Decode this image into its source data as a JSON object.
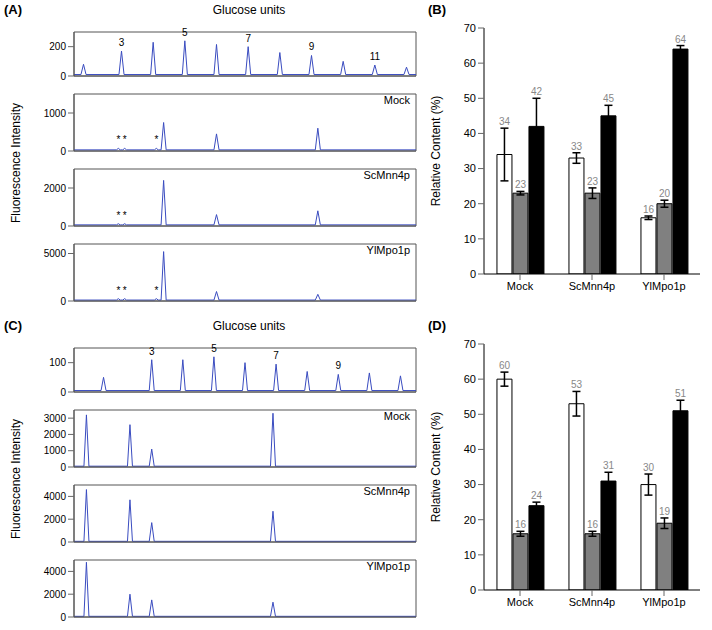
{
  "chart_data": [
    {
      "type": "line",
      "panel": "(A)",
      "title": "Glucose units",
      "y_label": "Fluorescence Intensity",
      "tick_labels": "y",
      "xlim": [
        1.5,
        12.3
      ],
      "traces": [
        {
          "color": "#3a4cc0",
          "ylim": [
            0,
            300
          ],
          "yticks": [
            0,
            200
          ],
          "x": [
            1.5,
            1.72,
            1.8,
            1.88,
            2.92,
            3,
            3.08,
            3.92,
            4,
            4.08,
            4.92,
            5,
            5.08,
            5.92,
            6,
            6.08,
            6.92,
            7,
            7.08,
            7.92,
            8,
            8.08,
            8.92,
            9,
            9.08,
            9.92,
            10,
            10.08,
            10.92,
            11,
            11.08,
            11.92,
            12,
            12.08,
            12.3
          ],
          "values": [
            10,
            10,
            80,
            10,
            10,
            170,
            10,
            10,
            230,
            10,
            10,
            240,
            10,
            10,
            215,
            10,
            10,
            200,
            10,
            10,
            160,
            10,
            10,
            140,
            10,
            10,
            100,
            10,
            10,
            75,
            10,
            10,
            60,
            10,
            10
          ],
          "annotations": [
            {
              "x": 3,
              "y": 170,
              "label": "3"
            },
            {
              "x": 5,
              "y": 240,
              "label": "5"
            },
            {
              "x": 7,
              "y": 200,
              "label": "7"
            },
            {
              "x": 9,
              "y": 140,
              "label": "9"
            },
            {
              "x": 11,
              "y": 75,
              "label": "11"
            }
          ]
        },
        {
          "name": "Mock",
          "color": "#3a4cc0",
          "ylim": [
            0,
            1500
          ],
          "yticks": [
            0,
            1000
          ],
          "x": [
            1.5,
            2.84,
            2.9,
            2.96,
            3.04,
            3.1,
            3.16,
            4.04,
            4.1,
            4.16,
            4.25,
            4.33,
            4.41,
            5.92,
            6,
            6.08,
            9.12,
            9.2,
            9.28,
            12.3
          ],
          "values": [
            30,
            30,
            70,
            30,
            30,
            70,
            30,
            30,
            70,
            30,
            30,
            750,
            30,
            30,
            450,
            30,
            30,
            600,
            30,
            30
          ],
          "annotations": [
            {
              "x": 2.9,
              "y": 70,
              "label": "*"
            },
            {
              "x": 3.1,
              "y": 70,
              "label": "*"
            },
            {
              "x": 4.1,
              "y": 70,
              "label": "*"
            }
          ]
        },
        {
          "name": "ScMnn4p",
          "color": "#3a4cc0",
          "ylim": [
            0,
            3000
          ],
          "yticks": [
            0,
            2000
          ],
          "x": [
            1.5,
            2.84,
            2.9,
            2.96,
            3.04,
            3.1,
            3.16,
            4.25,
            4.33,
            4.41,
            5.92,
            6,
            6.08,
            9.12,
            9.2,
            9.28,
            12.3
          ],
          "values": [
            60,
            60,
            120,
            60,
            60,
            120,
            60,
            60,
            2400,
            60,
            60,
            600,
            60,
            60,
            800,
            60,
            60
          ],
          "annotations": [
            {
              "x": 2.9,
              "y": 120,
              "label": "*"
            },
            {
              "x": 3.1,
              "y": 120,
              "label": "*"
            }
          ]
        },
        {
          "name": "YlMpo1p",
          "color": "#3a4cc0",
          "ylim": [
            0,
            6000
          ],
          "yticks": [
            0,
            5000
          ],
          "x": [
            1.5,
            2.84,
            2.9,
            2.96,
            3.04,
            3.1,
            3.16,
            4.04,
            4.1,
            4.16,
            4.25,
            4.33,
            4.41,
            5.92,
            6,
            6.08,
            9.12,
            9.2,
            9.28,
            12.3
          ],
          "values": [
            100,
            100,
            250,
            100,
            100,
            250,
            100,
            100,
            250,
            100,
            100,
            5200,
            100,
            100,
            1000,
            100,
            100,
            700,
            100,
            100
          ],
          "annotations": [
            {
              "x": 2.9,
              "y": 250,
              "label": "*"
            },
            {
              "x": 3.1,
              "y": 250,
              "label": "*"
            },
            {
              "x": 4.1,
              "y": 250,
              "label": "*"
            }
          ]
        }
      ]
    },
    {
      "type": "bar",
      "panel": "(B)",
      "y_label": "Relative Content (%)",
      "categories": [
        "Mock",
        "ScMnn4p",
        "YlMpo1p"
      ],
      "ylim": [
        0,
        70
      ],
      "yticks": [
        0,
        10,
        20,
        30,
        40,
        50,
        60,
        70
      ],
      "data_labels": true,
      "series": [
        {
          "color": "#ffffff",
          "values": [
            34,
            33,
            16
          ],
          "errors": [
            7.5,
            1.5,
            0.5
          ]
        },
        {
          "color": "#808080",
          "values": [
            23,
            23,
            20
          ],
          "errors": [
            0.5,
            1.5,
            1
          ]
        },
        {
          "color": "#000000",
          "values": [
            42,
            45,
            64
          ],
          "errors": [
            8,
            3,
            1
          ]
        }
      ]
    },
    {
      "type": "line",
      "panel": "(C)",
      "title": "Glucose units",
      "y_label": "Fluorescence Intensity",
      "tick_labels": "y",
      "xlim": [
        0.5,
        11.5
      ],
      "traces": [
        {
          "color": "#3a4cc0",
          "ylim": [
            0,
            150
          ],
          "yticks": [
            0,
            100
          ],
          "x": [
            0.5,
            1.37,
            1.45,
            1.53,
            2.92,
            3,
            3.08,
            3.92,
            4,
            4.08,
            4.92,
            5,
            5.08,
            5.92,
            6,
            6.08,
            6.92,
            7,
            7.08,
            7.92,
            8,
            8.08,
            8.92,
            9,
            9.08,
            9.92,
            10,
            10.08,
            10.92,
            11,
            11.08,
            11.5
          ],
          "values": [
            5,
            5,
            50,
            5,
            5,
            110,
            5,
            5,
            110,
            5,
            5,
            120,
            5,
            5,
            100,
            5,
            5,
            95,
            5,
            5,
            70,
            5,
            5,
            60,
            5,
            5,
            65,
            5,
            5,
            55,
            5,
            5
          ],
          "annotations": [
            {
              "x": 3,
              "y": 110,
              "label": "3"
            },
            {
              "x": 5,
              "y": 120,
              "label": "5"
            },
            {
              "x": 7,
              "y": 95,
              "label": "7"
            },
            {
              "x": 9,
              "y": 60,
              "label": "9"
            }
          ]
        },
        {
          "name": "Mock",
          "color": "#3a4cc0",
          "ylim": [
            0,
            3500
          ],
          "yticks": [
            0,
            1000,
            2000,
            3000
          ],
          "x": [
            0.5,
            0.82,
            0.9,
            0.98,
            2.22,
            2.3,
            2.38,
            2.92,
            3,
            3.08,
            6.82,
            6.9,
            6.98,
            11.5
          ],
          "values": [
            50,
            50,
            3200,
            50,
            50,
            2600,
            50,
            50,
            1100,
            50,
            50,
            3300,
            50,
            50
          ]
        },
        {
          "name": "ScMnn4p",
          "color": "#3a4cc0",
          "ylim": [
            0,
            5000
          ],
          "yticks": [
            0,
            2000,
            4000
          ],
          "x": [
            0.5,
            0.82,
            0.9,
            0.98,
            2.22,
            2.3,
            2.38,
            2.92,
            3,
            3.08,
            6.82,
            6.9,
            6.98,
            11.5
          ],
          "values": [
            60,
            60,
            4600,
            60,
            60,
            3700,
            60,
            60,
            1700,
            60,
            60,
            2700,
            60,
            60
          ]
        },
        {
          "name": "YlMpo1p",
          "color": "#3a4cc0",
          "ylim": [
            0,
            5000
          ],
          "yticks": [
            0,
            2000,
            4000
          ],
          "x": [
            0.5,
            0.82,
            0.9,
            0.98,
            2.22,
            2.3,
            2.38,
            2.92,
            3,
            3.08,
            6.82,
            6.9,
            6.98,
            11.5
          ],
          "values": [
            60,
            60,
            4800,
            60,
            60,
            2000,
            60,
            60,
            1500,
            60,
            60,
            1300,
            60,
            60
          ]
        }
      ]
    },
    {
      "type": "bar",
      "panel": "(D)",
      "y_label": "Relative Content (%)",
      "categories": [
        "Mock",
        "ScMnn4p",
        "YlMpo1p"
      ],
      "ylim": [
        0,
        70
      ],
      "yticks": [
        0,
        10,
        20,
        30,
        40,
        50,
        60,
        70
      ],
      "data_labels": true,
      "series": [
        {
          "color": "#ffffff",
          "values": [
            60,
            53,
            30
          ],
          "errors": [
            2,
            3.5,
            3
          ]
        },
        {
          "color": "#808080",
          "values": [
            16,
            16,
            19
          ],
          "errors": [
            0.7,
            0.7,
            1.5
          ]
        },
        {
          "color": "#000000",
          "values": [
            24,
            31,
            51
          ],
          "errors": [
            1,
            2.5,
            3
          ]
        }
      ]
    }
  ]
}
